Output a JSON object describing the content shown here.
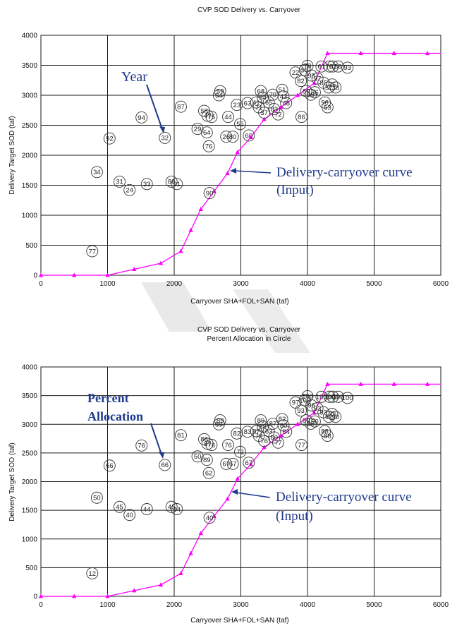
{
  "colors": {
    "grid": "#1a1a1a",
    "curve": "#ff00ff",
    "bubble": "#333333",
    "annotation": "#1f3a8c",
    "arrow": "#1f3a8c",
    "watermark": "#e6e6e6"
  },
  "chart_data": [
    {
      "type": "scatter",
      "title": "CVP SOD Delivery vs. Carryover",
      "subtitle": "",
      "xlabel": "Carryover SHA+FOL+SAN (taf)",
      "ylabel": "Delivery Target SOD (taf)",
      "xlim": [
        0,
        6000
      ],
      "ylim": [
        0,
        4000
      ],
      "x_ticks": [
        "0",
        "1000",
        "2000",
        "3000",
        "4000",
        "5000",
        "6000"
      ],
      "y_ticks": [
        "0",
        "500",
        "1000",
        "1500",
        "2000",
        "2500",
        "3000",
        "3500",
        "4000"
      ],
      "grid": true,
      "curve": {
        "x": [
          0,
          500,
          1000,
          1400,
          1800,
          2100,
          2250,
          2400,
          2600,
          2800,
          2950,
          3150,
          3350,
          3600,
          3850,
          4100,
          4300,
          4800,
          5300,
          5800,
          6000
        ],
        "y": [
          0,
          0,
          0,
          100,
          200,
          400,
          750,
          1100,
          1400,
          1700,
          2050,
          2300,
          2600,
          2800,
          3000,
          3200,
          3700,
          3700,
          3700,
          3700,
          3700
        ]
      },
      "points": [
        {
          "label": "77",
          "x": 770,
          "y": 400
        },
        {
          "label": "34",
          "x": 840,
          "y": 1720
        },
        {
          "label": "31",
          "x": 1180,
          "y": 1560
        },
        {
          "label": "24",
          "x": 1330,
          "y": 1420
        },
        {
          "label": "33",
          "x": 1590,
          "y": 1520
        },
        {
          "label": "92",
          "x": 1030,
          "y": 2280
        },
        {
          "label": "94",
          "x": 1510,
          "y": 2630
        },
        {
          "label": "32",
          "x": 1860,
          "y": 2290
        },
        {
          "label": "87",
          "x": 2100,
          "y": 2810
        },
        {
          "label": "88",
          "x": 1960,
          "y": 1560
        },
        {
          "label": "91",
          "x": 2040,
          "y": 1520
        },
        {
          "label": "29",
          "x": 2350,
          "y": 2440
        },
        {
          "label": "64",
          "x": 2490,
          "y": 2380
        },
        {
          "label": "58",
          "x": 2450,
          "y": 2740
        },
        {
          "label": "47",
          "x": 2500,
          "y": 2660
        },
        {
          "label": "75",
          "x": 2560,
          "y": 2640
        },
        {
          "label": "76",
          "x": 2520,
          "y": 2150
        },
        {
          "label": "90",
          "x": 2530,
          "y": 1370
        },
        {
          "label": "59",
          "x": 2690,
          "y": 3070
        },
        {
          "label": "64",
          "x": 2670,
          "y": 3000
        },
        {
          "label": "44",
          "x": 2810,
          "y": 2640
        },
        {
          "label": "23",
          "x": 2940,
          "y": 2840
        },
        {
          "label": "26",
          "x": 2780,
          "y": 2310
        },
        {
          "label": "80",
          "x": 2880,
          "y": 2310
        },
        {
          "label": "55",
          "x": 2990,
          "y": 2520
        },
        {
          "label": "60",
          "x": 3120,
          "y": 2330
        },
        {
          "label": "63",
          "x": 3100,
          "y": 2870
        },
        {
          "label": "41",
          "x": 3230,
          "y": 2880
        },
        {
          "label": "68",
          "x": 3300,
          "y": 3070
        },
        {
          "label": "84",
          "x": 3330,
          "y": 2960
        },
        {
          "label": "71",
          "x": 3270,
          "y": 2800
        },
        {
          "label": "37",
          "x": 3350,
          "y": 2710
        },
        {
          "label": "65",
          "x": 3420,
          "y": 2880
        },
        {
          "label": "79",
          "x": 3480,
          "y": 3010
        },
        {
          "label": "83",
          "x": 3500,
          "y": 2770
        },
        {
          "label": "72",
          "x": 3560,
          "y": 2680
        },
        {
          "label": "51",
          "x": 3620,
          "y": 3090
        },
        {
          "label": "43",
          "x": 3640,
          "y": 2980
        },
        {
          "label": "48",
          "x": 3680,
          "y": 2870
        },
        {
          "label": "22",
          "x": 3820,
          "y": 3380
        },
        {
          "label": "82",
          "x": 3900,
          "y": 3240
        },
        {
          "label": "86",
          "x": 3910,
          "y": 2640
        },
        {
          "label": "95",
          "x": 3960,
          "y": 3420
        },
        {
          "label": "78",
          "x": 4000,
          "y": 3490
        },
        {
          "label": "98",
          "x": 4060,
          "y": 3330
        },
        {
          "label": "97",
          "x": 4150,
          "y": 3280
        },
        {
          "label": "99",
          "x": 4050,
          "y": 3010
        },
        {
          "label": "89",
          "x": 3980,
          "y": 3070
        },
        {
          "label": "36",
          "x": 4110,
          "y": 3050
        },
        {
          "label": "96",
          "x": 4260,
          "y": 2880
        },
        {
          "label": "85",
          "x": 4240,
          "y": 3210
        },
        {
          "label": "57",
          "x": 4320,
          "y": 3130
        },
        {
          "label": "70",
          "x": 4330,
          "y": 3480
        },
        {
          "label": "62",
          "x": 4380,
          "y": 3480
        },
        {
          "label": "56",
          "x": 4460,
          "y": 3480
        },
        {
          "label": "35",
          "x": 4370,
          "y": 3180
        },
        {
          "label": "38",
          "x": 4420,
          "y": 3130
        },
        {
          "label": "53",
          "x": 4300,
          "y": 2800
        },
        {
          "label": "61",
          "x": 4210,
          "y": 3480
        },
        {
          "label": "93",
          "x": 4600,
          "y": 3460
        }
      ],
      "annotations": {
        "points_label": "Year",
        "curve_label_line1": "Delivery-carryover curve",
        "curve_label_line2": "(Input)"
      }
    },
    {
      "type": "scatter",
      "title": "CVP SOD Delivery vs. Carryover",
      "subtitle": "Percent Allocation in Circle",
      "xlabel": "Carryover SHA+FOL+SAN (taf)",
      "ylabel": "Delivery Target SOD (taf)",
      "xlim": [
        0,
        6000
      ],
      "ylim": [
        0,
        4000
      ],
      "x_ticks": [
        "0",
        "1000",
        "2000",
        "3000",
        "4000",
        "5000",
        "6000"
      ],
      "y_ticks": [
        "0",
        "500",
        "1000",
        "1500",
        "2000",
        "2500",
        "3000",
        "3500",
        "4000"
      ],
      "grid": true,
      "curve": {
        "x": [
          0,
          500,
          1000,
          1400,
          1800,
          2100,
          2250,
          2400,
          2600,
          2800,
          2950,
          3150,
          3350,
          3600,
          3850,
          4100,
          4300,
          4800,
          5300,
          5800,
          6000
        ],
        "y": [
          0,
          0,
          0,
          100,
          200,
          400,
          750,
          1100,
          1400,
          1700,
          2050,
          2300,
          2600,
          2800,
          3000,
          3200,
          3700,
          3700,
          3700,
          3700,
          3700
        ]
      },
      "points": [
        {
          "label": "12",
          "x": 770,
          "y": 400
        },
        {
          "label": "50",
          "x": 840,
          "y": 1720
        },
        {
          "label": "45",
          "x": 1180,
          "y": 1560
        },
        {
          "label": "40",
          "x": 1330,
          "y": 1420
        },
        {
          "label": "44",
          "x": 1590,
          "y": 1520
        },
        {
          "label": "66",
          "x": 1030,
          "y": 2280
        },
        {
          "label": "76",
          "x": 1510,
          "y": 2630
        },
        {
          "label": "66",
          "x": 1860,
          "y": 2290
        },
        {
          "label": "81",
          "x": 2100,
          "y": 2810
        },
        {
          "label": "45",
          "x": 1960,
          "y": 1560
        },
        {
          "label": "44",
          "x": 2040,
          "y": 1520
        },
        {
          "label": "50",
          "x": 2350,
          "y": 2440
        },
        {
          "label": "89",
          "x": 2490,
          "y": 2380
        },
        {
          "label": "86",
          "x": 2450,
          "y": 2740
        },
        {
          "label": "87",
          "x": 2500,
          "y": 2660
        },
        {
          "label": "76",
          "x": 2560,
          "y": 2640
        },
        {
          "label": "62",
          "x": 2520,
          "y": 2150
        },
        {
          "label": "40",
          "x": 2530,
          "y": 1370
        },
        {
          "label": "89",
          "x": 2690,
          "y": 3070
        },
        {
          "label": "89",
          "x": 2670,
          "y": 3000
        },
        {
          "label": "76",
          "x": 2810,
          "y": 2640
        },
        {
          "label": "82",
          "x": 2940,
          "y": 2840
        },
        {
          "label": "67",
          "x": 2780,
          "y": 2310
        },
        {
          "label": "67",
          "x": 2880,
          "y": 2310
        },
        {
          "label": "72",
          "x": 2990,
          "y": 2520
        },
        {
          "label": "67",
          "x": 3120,
          "y": 2330
        },
        {
          "label": "83",
          "x": 3100,
          "y": 2870
        },
        {
          "label": "87",
          "x": 3230,
          "y": 2880
        },
        {
          "label": "89",
          "x": 3300,
          "y": 3070
        },
        {
          "label": "88",
          "x": 3330,
          "y": 2960
        },
        {
          "label": "76",
          "x": 3270,
          "y": 2800
        },
        {
          "label": "76",
          "x": 3350,
          "y": 2710
        },
        {
          "label": "83",
          "x": 3420,
          "y": 2880
        },
        {
          "label": "87",
          "x": 3480,
          "y": 3010
        },
        {
          "label": "80",
          "x": 3500,
          "y": 2770
        },
        {
          "label": "77",
          "x": 3560,
          "y": 2680
        },
        {
          "label": "82",
          "x": 3620,
          "y": 3090
        },
        {
          "label": "80",
          "x": 3640,
          "y": 2980
        },
        {
          "label": "84",
          "x": 3680,
          "y": 2870
        },
        {
          "label": "97",
          "x": 3820,
          "y": 3380
        },
        {
          "label": "93",
          "x": 3900,
          "y": 3240
        },
        {
          "label": "77",
          "x": 3910,
          "y": 2640
        },
        {
          "label": "100",
          "x": 3960,
          "y": 3420
        },
        {
          "label": "100",
          "x": 4000,
          "y": 3490
        },
        {
          "label": "96",
          "x": 4060,
          "y": 3330
        },
        {
          "label": "93",
          "x": 4150,
          "y": 3280
        },
        {
          "label": "88",
          "x": 4050,
          "y": 3010
        },
        {
          "label": "89",
          "x": 3980,
          "y": 3070
        },
        {
          "label": "90",
          "x": 4110,
          "y": 3050
        },
        {
          "label": "88",
          "x": 4260,
          "y": 2880
        },
        {
          "label": "93",
          "x": 4240,
          "y": 3210
        },
        {
          "label": "92",
          "x": 4320,
          "y": 3130
        },
        {
          "label": "100",
          "x": 4330,
          "y": 3480
        },
        {
          "label": "100",
          "x": 4380,
          "y": 3480
        },
        {
          "label": "100",
          "x": 4460,
          "y": 3480
        },
        {
          "label": "93",
          "x": 4370,
          "y": 3180
        },
        {
          "label": "90",
          "x": 4420,
          "y": 3130
        },
        {
          "label": "88",
          "x": 4300,
          "y": 2800
        },
        {
          "label": "100",
          "x": 4210,
          "y": 3480
        },
        {
          "label": "100",
          "x": 4600,
          "y": 3460
        }
      ],
      "annotations": {
        "points_label_line1": "Percent",
        "points_label_line2": "Allocation",
        "curve_label_line1": "Delivery-carryover curve",
        "curve_label_line2": "(Input)"
      }
    }
  ]
}
